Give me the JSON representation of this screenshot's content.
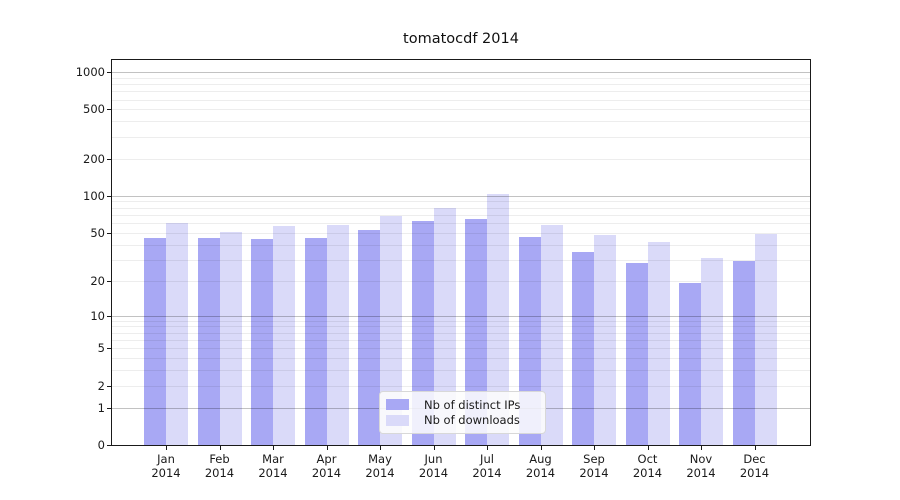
{
  "title": "tomatocdf 2014",
  "legend": {
    "items": [
      {
        "label": "Nb of distinct IPs",
        "color": "#a8a8f4"
      },
      {
        "label": "Nb of downloads",
        "color": "#dadaf9"
      }
    ]
  },
  "y_axis": {
    "tick_values": [
      0,
      1,
      2,
      5,
      10,
      20,
      50,
      100,
      200,
      500,
      1000
    ],
    "tick_labels": [
      "0",
      "1",
      "2",
      "5",
      "10",
      "20",
      "50",
      "100",
      "200",
      "500",
      "1000"
    ]
  },
  "x_axis": {
    "months": [
      "Jan",
      "Feb",
      "Mar",
      "Apr",
      "May",
      "Jun",
      "Jul",
      "Aug",
      "Sep",
      "Oct",
      "Nov",
      "Dec"
    ],
    "year": "2014"
  },
  "colors": {
    "distinct_ips": "#a8a8f4",
    "downloads": "#dadaf9",
    "grid_major": "rgba(0,0,0,0.24)",
    "grid_minor": "rgba(0,0,0,0.07)",
    "spine": "#1a1a1a",
    "text": "#1a1a1a"
  },
  "chart_data": {
    "type": "bar",
    "title": "tomatocdf 2014",
    "categories": [
      "Jan 2014",
      "Feb 2014",
      "Mar 2014",
      "Apr 2014",
      "May 2014",
      "Jun 2014",
      "Jul 2014",
      "Aug 2014",
      "Sep 2014",
      "Oct 2014",
      "Nov 2014",
      "Dec 2014"
    ],
    "series": [
      {
        "name": "Nb of distinct IPs",
        "values": [
          45,
          45,
          44,
          45,
          53,
          62,
          65,
          46,
          35,
          28,
          19,
          29
        ]
      },
      {
        "name": "Nb of downloads",
        "values": [
          60,
          51,
          57,
          58,
          69,
          80,
          103,
          58,
          48,
          42,
          31,
          49
        ]
      }
    ],
    "yscale": "log10(value+1)",
    "ylim": [
      0,
      1000
    ],
    "yticks": [
      0,
      1,
      2,
      5,
      10,
      20,
      50,
      100,
      200,
      500,
      1000
    ],
    "xlabel": "",
    "ylabel": "",
    "grid": true,
    "legend_position": "lower center"
  }
}
